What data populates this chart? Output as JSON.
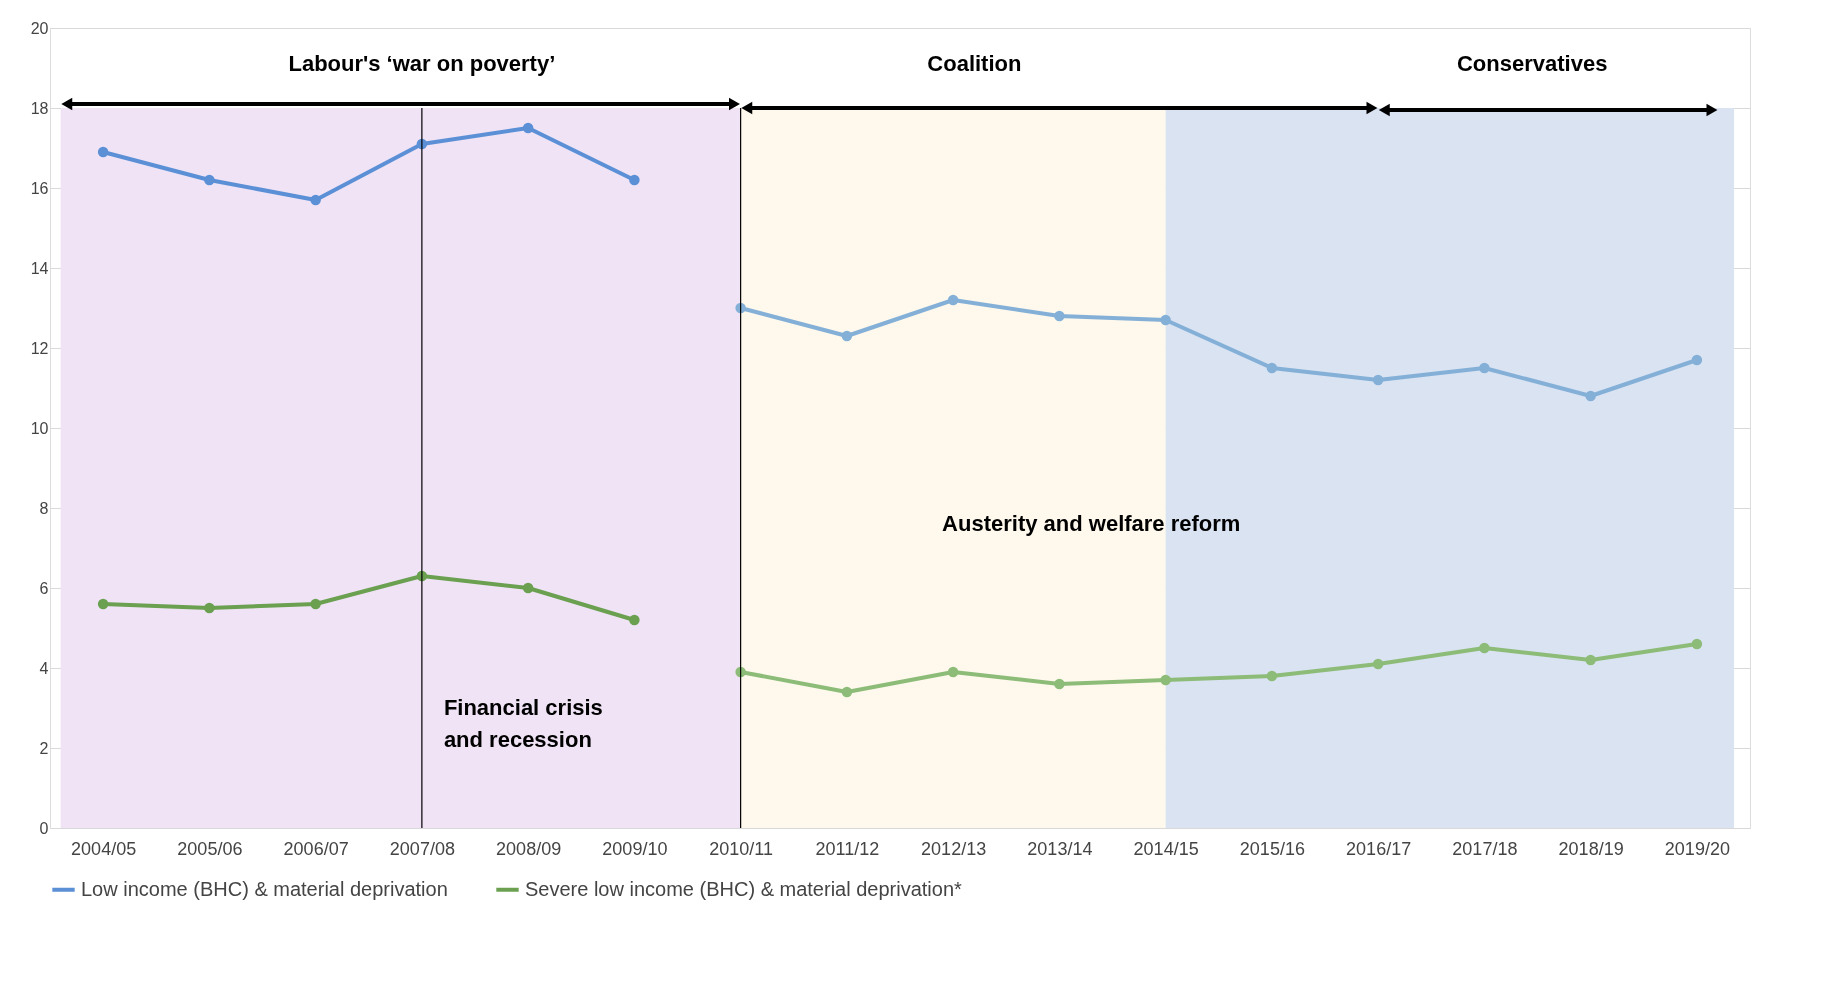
{
  "chart_data": {
    "type": "line",
    "categories": [
      "2004/05",
      "2005/06",
      "2006/07",
      "2007/08",
      "2008/09",
      "2009/10",
      "2010/11",
      "2011/12",
      "2012/13",
      "2013/14",
      "2014/15",
      "2015/16",
      "2016/17",
      "2017/18",
      "2018/19",
      "2019/20"
    ],
    "series": [
      {
        "name": "Low income (BHC) & material deprivation",
        "color": "#5b8fd6",
        "values": [
          16.9,
          16.2,
          15.7,
          17.1,
          17.5,
          16.2,
          null,
          null,
          null,
          null,
          null,
          null,
          null,
          null,
          null,
          null
        ]
      },
      {
        "name": "Severe low income (BHC) & material deprivation*",
        "color": "#6aa050",
        "values": [
          5.6,
          5.5,
          5.6,
          6.3,
          6.0,
          5.2,
          null,
          null,
          null,
          null,
          null,
          null,
          null,
          null,
          null,
          null
        ]
      },
      {
        "color": "#84b0d8",
        "values": [
          null,
          null,
          null,
          null,
          null,
          null,
          13.0,
          12.3,
          13.2,
          12.8,
          12.7,
          11.5,
          11.2,
          11.5,
          10.8,
          11.7
        ]
      },
      {
        "color": "#8cbc78",
        "values": [
          null,
          null,
          null,
          null,
          null,
          null,
          3.9,
          3.4,
          3.9,
          3.6,
          3.7,
          3.8,
          4.1,
          4.5,
          4.2,
          4.6
        ]
      }
    ],
    "ylim": [
      0,
      20
    ],
    "yticks": [
      0,
      2,
      4,
      6,
      8,
      10,
      12,
      14,
      16,
      18,
      20
    ],
    "grid": "y",
    "legend": "bottom",
    "marker": "circle",
    "line_style": "solid",
    "bands": [
      {
        "axis": "x",
        "from": "2004/05",
        "to": "2010/11",
        "color": "#efe3f5"
      },
      {
        "axis": "x",
        "from": "2010/11",
        "to": "2014/15",
        "color": "#fef9ec"
      },
      {
        "axis": "x",
        "from": "2014/15",
        "to": "2019/20",
        "color": "#dae3f2"
      }
    ],
    "ref_lines": [
      {
        "axis": "x",
        "value": "2007/08",
        "label": "Financial crisis and recession",
        "color": "#000000"
      },
      {
        "axis": "x",
        "value": "2010/11",
        "label": null,
        "color": "#000000"
      }
    ],
    "annotations": [
      "Labour's ‘war on poverty’",
      "Coalition",
      "Conservatives",
      "Austerity and welfare reform"
    ]
  }
}
